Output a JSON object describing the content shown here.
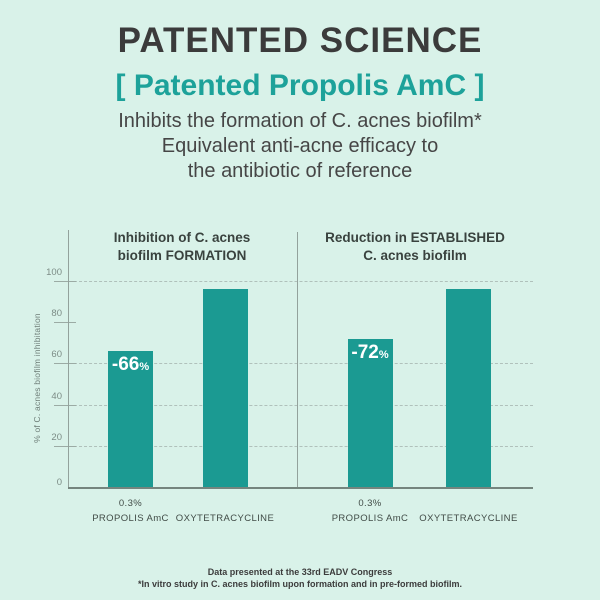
{
  "theme": {
    "background": "#d9f2e9",
    "accent_teal": "#1b9a92",
    "heading_teal": "#1da29a",
    "dark_text": "#3b3b3b",
    "grid_color": "#b0c1bb",
    "axis_color": "#93a29c"
  },
  "header": {
    "title": "PATENTED SCIENCE",
    "subtitle": "[ Patented Propolis AmC ]",
    "description_lines": [
      "Inhibits the formation of C. acnes biofilm*",
      "Equivalent anti-acne efficacy to",
      "the antibiotic of reference"
    ]
  },
  "chart_data": {
    "type": "bar",
    "title": "",
    "ylabel": "% of C. acnes biofilm inhibitation",
    "xlabel": "",
    "ylim": [
      0,
      105
    ],
    "yticks": [
      0,
      20,
      40,
      60,
      80,
      100
    ],
    "dashed_gridlines_at": [
      20,
      40,
      60,
      100
    ],
    "grid": "horizontal-dashed",
    "legend_position": "none",
    "bar_color": "#1b9a92",
    "panels": [
      {
        "title_lines": [
          "Inhibition of C. acnes",
          "biofilm FORMATION"
        ],
        "bars": [
          {
            "category_lines": [
              "0.3%",
              "PROPOLIS AmC"
            ],
            "value": 66,
            "label": "-66",
            "label_suffix": "%"
          },
          {
            "category_lines": [
              "",
              "OXYTETRACYCLINE"
            ],
            "value": 96,
            "label": "",
            "label_suffix": ""
          }
        ]
      },
      {
        "title_lines": [
          "Reduction in ESTABLISHED",
          "C. acnes biofilm"
        ],
        "bars": [
          {
            "category_lines": [
              "0.3%",
              "PROPOLIS AmC"
            ],
            "value": 72,
            "label": "-72",
            "label_suffix": "%"
          },
          {
            "category_lines": [
              "",
              "OXYTETRACYCLINE"
            ],
            "value": 96,
            "label": "",
            "label_suffix": ""
          }
        ]
      }
    ]
  },
  "footer": {
    "lines": [
      "Data presented at the 33rd EADV Congress",
      "*In vitro study in C. acnes biofilm upon formation and in pre-formed biofilm."
    ]
  }
}
